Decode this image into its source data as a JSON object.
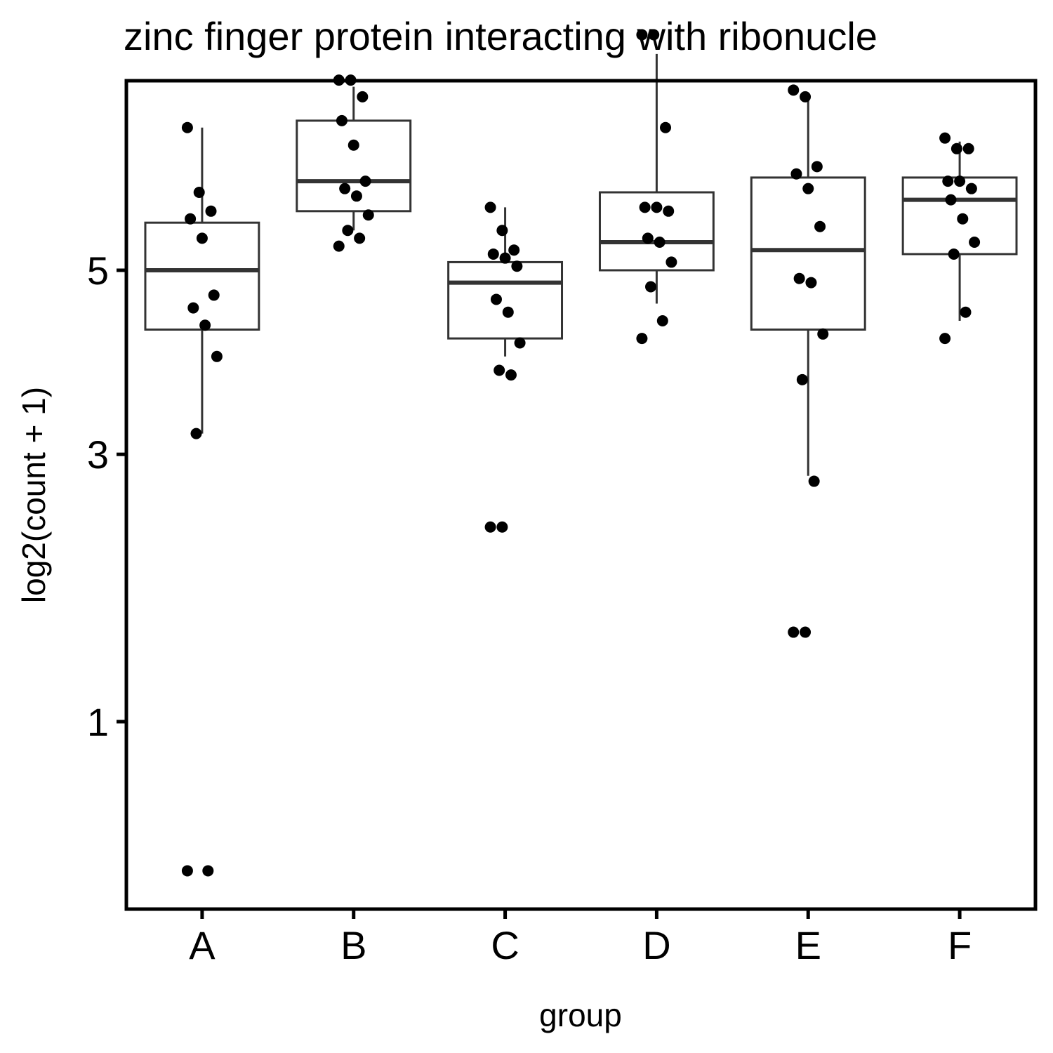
{
  "chart_data": {
    "type": "boxplot",
    "title": "zinc finger protein interacting with ribonucle",
    "xlabel": "group",
    "ylabel": "log2(count + 1)",
    "y_scale": "sqrt",
    "y_ticks": [
      1,
      3,
      5
    ],
    "ylim": [
      0.4,
      8.2
    ],
    "categories": [
      "A",
      "B",
      "C",
      "D",
      "E",
      "F"
    ],
    "boxes": [
      {
        "group": "A",
        "whisker_low": 3.2,
        "q1": 4.3,
        "median": 5.0,
        "q3": 5.6,
        "whisker_high": 6.9
      },
      {
        "group": "B",
        "whisker_low": 5.5,
        "q1": 5.75,
        "median": 6.15,
        "q3": 7.0,
        "whisker_high": 7.5
      },
      {
        "group": "C",
        "whisker_low": 4.0,
        "q1": 4.2,
        "median": 4.85,
        "q3": 5.1,
        "whisker_high": 5.8
      },
      {
        "group": "D",
        "whisker_low": 4.6,
        "q1": 5.0,
        "median": 5.35,
        "q3": 6.0,
        "whisker_high": 8.0
      },
      {
        "group": "E",
        "whisker_low": 2.8,
        "q1": 4.3,
        "median": 5.25,
        "q3": 6.2,
        "whisker_high": 7.3
      },
      {
        "group": "F",
        "whisker_low": 4.4,
        "q1": 5.2,
        "median": 5.9,
        "q3": 6.2,
        "whisker_high": 6.7
      }
    ],
    "points": [
      {
        "group": "A",
        "values": [
          6.9,
          6.0,
          5.75,
          5.65,
          5.4,
          4.7,
          4.55,
          4.35,
          4.0,
          3.2,
          0.35,
          0.35
        ]
      },
      {
        "group": "B",
        "values": [
          7.6,
          7.6,
          7.35,
          7.0,
          6.65,
          6.15,
          6.05,
          5.95,
          5.7,
          5.5,
          5.4,
          5.3
        ]
      },
      {
        "group": "C",
        "values": [
          5.8,
          5.5,
          5.25,
          5.2,
          5.15,
          5.05,
          4.65,
          4.5,
          4.15,
          3.85,
          3.8,
          2.35,
          2.35
        ]
      },
      {
        "group": "D",
        "values": [
          8.3,
          8.3,
          6.9,
          5.8,
          5.8,
          5.75,
          5.4,
          5.35,
          5.1,
          4.8,
          4.4,
          4.2
        ]
      },
      {
        "group": "E",
        "values": [
          7.45,
          7.35,
          6.35,
          6.25,
          6.05,
          5.55,
          4.9,
          4.85,
          4.25,
          3.75,
          2.75,
          1.55,
          1.55
        ]
      },
      {
        "group": "F",
        "values": [
          6.75,
          6.6,
          6.6,
          6.15,
          6.15,
          6.05,
          5.9,
          5.65,
          5.35,
          5.2,
          4.5,
          4.2
        ]
      }
    ],
    "grid": false,
    "legend": "none"
  }
}
